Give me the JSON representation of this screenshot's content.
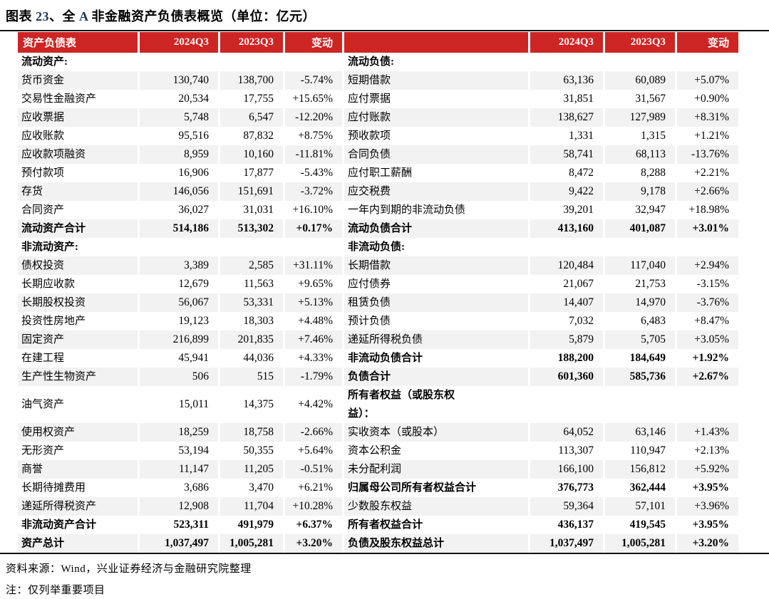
{
  "colors": {
    "header_red": "#CD2424",
    "title_blue": "#17375E",
    "stripe_gray": "#F2F2F2",
    "rule_black": "#111111"
  },
  "title": {
    "segments": [
      {
        "text": "图表 ",
        "color": "black"
      },
      {
        "text": "23",
        "color": "blue"
      },
      {
        "text": "、全 ",
        "color": "black"
      },
      {
        "text": "A",
        "color": "blue"
      },
      {
        "text": " 非金融资产负债表概览（单位：亿元）",
        "color": "black"
      }
    ]
  },
  "table": {
    "header": {
      "left_label": "资产负债表",
      "right_label": "",
      "col_2024": "2024Q3",
      "col_2023": "2023Q3",
      "col_change": "变动"
    },
    "rows": [
      {
        "left": {
          "label": "流动资产:",
          "v2024": "",
          "v2023": "",
          "chg": "",
          "bold": true
        },
        "right": {
          "label": "流动负债:",
          "v2024": "",
          "v2023": "",
          "chg": "",
          "bold": true
        }
      },
      {
        "left": {
          "label": "货币资金",
          "v2024": "130,740",
          "v2023": "138,700",
          "chg": "-5.74%"
        },
        "right": {
          "label": "短期借款",
          "v2024": "63,136",
          "v2023": "60,089",
          "chg": "+5.07%"
        }
      },
      {
        "left": {
          "label": "交易性金融资产",
          "v2024": "20,534",
          "v2023": "17,755",
          "chg": "+15.65%"
        },
        "right": {
          "label": "应付票据",
          "v2024": "31,851",
          "v2023": "31,567",
          "chg": "+0.90%"
        }
      },
      {
        "left": {
          "label": "应收票据",
          "v2024": "5,748",
          "v2023": "6,547",
          "chg": "-12.20%"
        },
        "right": {
          "label": "应付账款",
          "v2024": "138,627",
          "v2023": "127,989",
          "chg": "+8.31%"
        }
      },
      {
        "left": {
          "label": "应收账款",
          "v2024": "95,516",
          "v2023": "87,832",
          "chg": "+8.75%"
        },
        "right": {
          "label": "预收款项",
          "v2024": "1,331",
          "v2023": "1,315",
          "chg": "+1.21%"
        }
      },
      {
        "left": {
          "label": "应收款项融资",
          "v2024": "8,959",
          "v2023": "10,160",
          "chg": "-11.81%"
        },
        "right": {
          "label": "合同负债",
          "v2024": "58,741",
          "v2023": "68,113",
          "chg": "-13.76%"
        }
      },
      {
        "left": {
          "label": "预付款项",
          "v2024": "16,906",
          "v2023": "17,877",
          "chg": "-5.43%"
        },
        "right": {
          "label": "应付职工薪酬",
          "v2024": "8,472",
          "v2023": "8,288",
          "chg": "+2.21%"
        }
      },
      {
        "left": {
          "label": "存货",
          "v2024": "146,056",
          "v2023": "151,691",
          "chg": "-3.72%"
        },
        "right": {
          "label": "应交税费",
          "v2024": "9,422",
          "v2023": "9,178",
          "chg": "+2.66%"
        }
      },
      {
        "left": {
          "label": "合同资产",
          "v2024": "36,027",
          "v2023": "31,031",
          "chg": "+16.10%"
        },
        "right": {
          "label": "一年内到期的非流动负债",
          "v2024": "39,201",
          "v2023": "32,947",
          "chg": "+18.98%"
        }
      },
      {
        "left": {
          "label": "流动资产合计",
          "v2024": "514,186",
          "v2023": "513,302",
          "chg": "+0.17%",
          "bold": true
        },
        "right": {
          "label": "流动负债合计",
          "v2024": "413,160",
          "v2023": "401,087",
          "chg": "+3.01%",
          "bold": true
        }
      },
      {
        "left": {
          "label": "非流动资产:",
          "v2024": "",
          "v2023": "",
          "chg": "",
          "bold": true
        },
        "right": {
          "label": "非流动负债:",
          "v2024": "",
          "v2023": "",
          "chg": "",
          "bold": true
        }
      },
      {
        "left": {
          "label": "债权投资",
          "v2024": "3,389",
          "v2023": "2,585",
          "chg": "+31.11%"
        },
        "right": {
          "label": "长期借款",
          "v2024": "120,484",
          "v2023": "117,040",
          "chg": "+2.94%"
        }
      },
      {
        "left": {
          "label": "长期应收款",
          "v2024": "12,679",
          "v2023": "11,563",
          "chg": "+9.65%"
        },
        "right": {
          "label": "应付债券",
          "v2024": "21,067",
          "v2023": "21,753",
          "chg": "-3.15%"
        }
      },
      {
        "left": {
          "label": "长期股权投资",
          "v2024": "56,067",
          "v2023": "53,331",
          "chg": "+5.13%"
        },
        "right": {
          "label": "租赁负债",
          "v2024": "14,407",
          "v2023": "14,970",
          "chg": "-3.76%"
        }
      },
      {
        "left": {
          "label": "投资性房地产",
          "v2024": "19,123",
          "v2023": "18,303",
          "chg": "+4.48%"
        },
        "right": {
          "label": "预计负债",
          "v2024": "7,032",
          "v2023": "6,483",
          "chg": "+8.47%"
        }
      },
      {
        "left": {
          "label": "固定资产",
          "v2024": "216,899",
          "v2023": "201,835",
          "chg": "+7.46%"
        },
        "right": {
          "label": "递延所得税负债",
          "v2024": "5,879",
          "v2023": "5,705",
          "chg": "+3.05%"
        }
      },
      {
        "left": {
          "label": "在建工程",
          "v2024": "45,941",
          "v2023": "44,036",
          "chg": "+4.33%"
        },
        "right": {
          "label": "非流动负债合计",
          "v2024": "188,200",
          "v2023": "184,649",
          "chg": "+1.92%",
          "bold": true
        }
      },
      {
        "left": {
          "label": "生产性生物资产",
          "v2024": "506",
          "v2023": "515",
          "chg": "-1.79%"
        },
        "right": {
          "label": "负债合计",
          "v2024": "601,360",
          "v2023": "585,736",
          "chg": "+2.67%",
          "bold": true
        }
      },
      {
        "left": {
          "label": "油气资产",
          "v2024": "15,011",
          "v2023": "14,375",
          "chg": "+4.42%"
        },
        "right": {
          "label": "所有者权益（或股东权\n益）：",
          "v2024": "",
          "v2023": "",
          "chg": "",
          "bold": true
        }
      },
      {
        "left": {
          "label": "使用权资产",
          "v2024": "18,259",
          "v2023": "18,758",
          "chg": "-2.66%"
        },
        "right": {
          "label": "实收资本（或股本）",
          "v2024": "64,052",
          "v2023": "63,146",
          "chg": "+1.43%"
        }
      },
      {
        "left": {
          "label": "无形资产",
          "v2024": "53,194",
          "v2023": "50,355",
          "chg": "+5.64%"
        },
        "right": {
          "label": "资本公积金",
          "v2024": "113,307",
          "v2023": "110,947",
          "chg": "+2.13%"
        }
      },
      {
        "left": {
          "label": "商誉",
          "v2024": "11,147",
          "v2023": "11,205",
          "chg": "-0.51%"
        },
        "right": {
          "label": "未分配利润",
          "v2024": "166,100",
          "v2023": "156,812",
          "chg": "+5.92%"
        }
      },
      {
        "left": {
          "label": "长期待摊费用",
          "v2024": "3,686",
          "v2023": "3,470",
          "chg": "+6.21%"
        },
        "right": {
          "label": "归属母公司所有者权益合计",
          "v2024": "376,773",
          "v2023": "362,444",
          "chg": "+3.95%",
          "bold": true
        }
      },
      {
        "left": {
          "label": "递延所得税资产",
          "v2024": "12,908",
          "v2023": "11,704",
          "chg": "+10.28%"
        },
        "right": {
          "label": "少数股东权益",
          "v2024": "59,364",
          "v2023": "57,101",
          "chg": "+3.96%"
        }
      },
      {
        "left": {
          "label": "非流动资产合计",
          "v2024": "523,311",
          "v2023": "491,979",
          "chg": "+6.37%",
          "bold": true
        },
        "right": {
          "label": "所有者权益合计",
          "v2024": "436,137",
          "v2023": "419,545",
          "chg": "+3.95%",
          "bold": true
        }
      },
      {
        "left": {
          "label": "资产总计",
          "v2024": "1,037,497",
          "v2023": "1,005,281",
          "chg": "+3.20%",
          "bold": true
        },
        "right": {
          "label": "负债及股东权益总计",
          "v2024": "1,037,497",
          "v2023": "1,005,281",
          "chg": "+3.20%",
          "bold": true
        }
      }
    ]
  },
  "footer": {
    "source": "资料来源：Wind，兴业证券经济与金融研究院整理",
    "note": "注：仅列举重要项目"
  }
}
